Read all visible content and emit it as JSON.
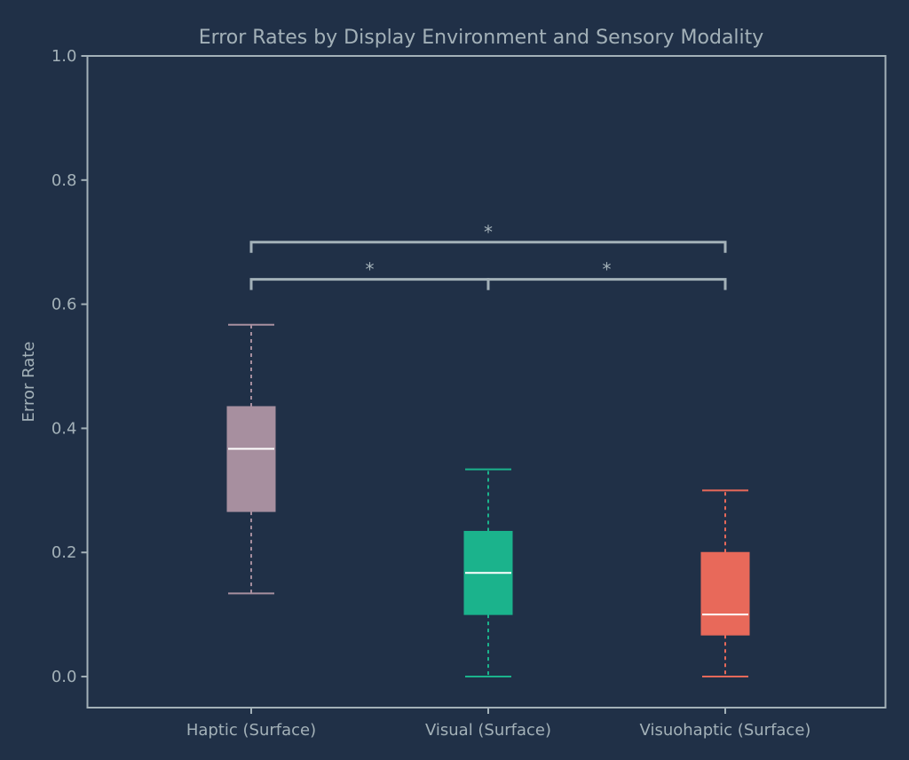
{
  "chart_data": {
    "type": "box",
    "title": "Error Rates by Display Environment and Sensory Modality",
    "xlabel": "",
    "ylabel": "Error Rate",
    "ylim": [
      -0.05,
      1.0
    ],
    "yticks": [
      0.0,
      0.2,
      0.4,
      0.6,
      0.8,
      1.0
    ],
    "ytick_labels": [
      "0.0",
      "0.2",
      "0.4",
      "0.6",
      "0.8",
      "1.0"
    ],
    "grid": false,
    "categories": [
      "Haptic (Surface)",
      "Visual (Surface)",
      "Visuohaptic (Surface)"
    ],
    "series": [
      {
        "name": "Haptic (Surface)",
        "whislo": 0.134,
        "q1": 0.266,
        "med": 0.367,
        "q3": 0.435,
        "whishi": 0.567,
        "color": "#a78f9f"
      },
      {
        "name": "Visual (Surface)",
        "whislo": 0.0,
        "q1": 0.1,
        "med": 0.167,
        "q3": 0.234,
        "whishi": 0.334,
        "color": "#1bb38c"
      },
      {
        "name": "Visuohaptic (Surface)",
        "whislo": 0.0,
        "q1": 0.067,
        "med": 0.1,
        "q3": 0.2,
        "whishi": 0.3,
        "color": "#e8695a"
      }
    ],
    "annotations": [
      {
        "from": 0,
        "to": 1,
        "y": 0.64,
        "label": "*"
      },
      {
        "from": 1,
        "to": 2,
        "y": 0.64,
        "label": "*"
      },
      {
        "from": 0,
        "to": 2,
        "y": 0.7,
        "label": "*"
      }
    ],
    "colors": {
      "background": "#203047",
      "axis": "#a3b1b8",
      "median": "#ffffff"
    }
  }
}
